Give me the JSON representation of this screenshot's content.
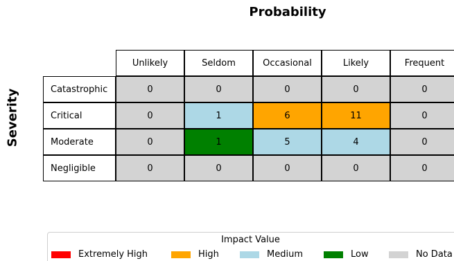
{
  "chart_data": {
    "type": "heatmap",
    "title": "Probability",
    "xlabel": "Probability",
    "ylabel": "Severity",
    "columns": [
      "Unlikely",
      "Seldom",
      "Occasional",
      "Likely",
      "Frequent"
    ],
    "rows": [
      "Catastrophic",
      "Critical",
      "Moderate",
      "Negligible"
    ],
    "values": [
      [
        0,
        0,
        0,
        0,
        0
      ],
      [
        0,
        1,
        6,
        11,
        0
      ],
      [
        0,
        1,
        5,
        4,
        0
      ],
      [
        0,
        0,
        0,
        0,
        0
      ]
    ],
    "cell_categories": [
      [
        "No Data",
        "No Data",
        "No Data",
        "No Data",
        "No Data"
      ],
      [
        "No Data",
        "Medium",
        "High",
        "High",
        "No Data"
      ],
      [
        "No Data",
        "Low",
        "Medium",
        "Medium",
        "No Data"
      ],
      [
        "No Data",
        "No Data",
        "No Data",
        "No Data",
        "No Data"
      ]
    ],
    "legend": {
      "title": "Impact Value",
      "placement": "bottom",
      "items": [
        {
          "label": "Extremely High",
          "color": "#ff0000"
        },
        {
          "label": "High",
          "color": "#ffa500"
        },
        {
          "label": "Medium",
          "color": "#add8e6"
        },
        {
          "label": "Low",
          "color": "#008000"
        },
        {
          "label": "No Data",
          "color": "#d3d3d3"
        }
      ]
    }
  }
}
